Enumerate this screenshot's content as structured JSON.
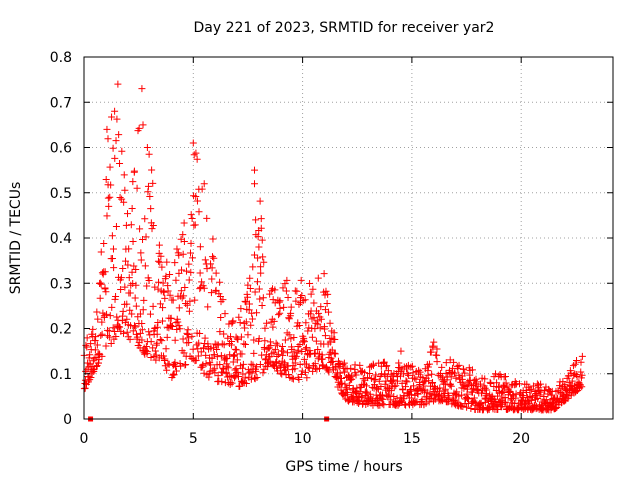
{
  "chart_data": {
    "type": "scatter",
    "title": "Day 221 of 2023, SRMTID for receiver yar2",
    "xlabel": "GPS time / hours",
    "ylabel": "SRMTID / TECUs",
    "xlim": [
      0,
      24.2
    ],
    "ylim": [
      0,
      0.8
    ],
    "x_ticks": [
      0,
      5,
      10,
      15,
      20
    ],
    "x_tick_labels": [
      "0",
      "5",
      "10",
      "15",
      "20"
    ],
    "y_ticks": [
      0,
      0.1,
      0.2,
      0.3,
      0.4,
      0.5,
      0.6,
      0.7,
      0.8
    ],
    "y_tick_labels": [
      "0",
      "0.1",
      "0.2",
      "0.3",
      "0.4",
      "0.5",
      "0.6",
      "0.7",
      "0.8"
    ],
    "grid": true,
    "series_color": "#ff0000",
    "marker": "plus",
    "square_markers": [
      {
        "x": 0.3,
        "y": 0
      },
      {
        "x": 11.1,
        "y": 0
      }
    ],
    "envelope": [
      {
        "x": 0.0,
        "low": 0.06,
        "high": 0.2
      },
      {
        "x": 0.5,
        "low": 0.11,
        "high": 0.2
      },
      {
        "x": 1.0,
        "low": 0.15,
        "high": 0.6
      },
      {
        "x": 1.5,
        "low": 0.18,
        "high": 0.74
      },
      {
        "x": 2.0,
        "low": 0.18,
        "high": 0.45
      },
      {
        "x": 2.5,
        "low": 0.16,
        "high": 0.73
      },
      {
        "x": 3.0,
        "low": 0.13,
        "high": 0.6
      },
      {
        "x": 3.5,
        "low": 0.13,
        "high": 0.38
      },
      {
        "x": 4.0,
        "low": 0.09,
        "high": 0.33
      },
      {
        "x": 4.5,
        "low": 0.12,
        "high": 0.44
      },
      {
        "x": 5.0,
        "low": 0.11,
        "high": 0.61
      },
      {
        "x": 5.5,
        "low": 0.1,
        "high": 0.52
      },
      {
        "x": 6.0,
        "low": 0.08,
        "high": 0.4
      },
      {
        "x": 6.5,
        "low": 0.08,
        "high": 0.22
      },
      {
        "x": 7.0,
        "low": 0.07,
        "high": 0.22
      },
      {
        "x": 7.5,
        "low": 0.08,
        "high": 0.3
      },
      {
        "x": 8.0,
        "low": 0.09,
        "high": 0.55
      },
      {
        "x": 8.5,
        "low": 0.12,
        "high": 0.3
      },
      {
        "x": 9.0,
        "low": 0.1,
        "high": 0.33
      },
      {
        "x": 9.5,
        "low": 0.09,
        "high": 0.3
      },
      {
        "x": 10.0,
        "low": 0.08,
        "high": 0.33
      },
      {
        "x": 10.5,
        "low": 0.1,
        "high": 0.3
      },
      {
        "x": 11.0,
        "low": 0.12,
        "high": 0.33
      },
      {
        "x": 11.5,
        "low": 0.08,
        "high": 0.18
      },
      {
        "x": 12.0,
        "low": 0.04,
        "high": 0.12
      },
      {
        "x": 13.0,
        "low": 0.03,
        "high": 0.12
      },
      {
        "x": 14.0,
        "low": 0.03,
        "high": 0.13
      },
      {
        "x": 15.0,
        "low": 0.03,
        "high": 0.12
      },
      {
        "x": 15.5,
        "low": 0.03,
        "high": 0.1
      },
      {
        "x": 16.0,
        "low": 0.04,
        "high": 0.17
      },
      {
        "x": 16.5,
        "low": 0.04,
        "high": 0.13
      },
      {
        "x": 17.0,
        "low": 0.03,
        "high": 0.14
      },
      {
        "x": 18.0,
        "low": 0.02,
        "high": 0.1
      },
      {
        "x": 19.0,
        "low": 0.02,
        "high": 0.1
      },
      {
        "x": 20.0,
        "low": 0.02,
        "high": 0.08
      },
      {
        "x": 21.0,
        "low": 0.02,
        "high": 0.08
      },
      {
        "x": 21.5,
        "low": 0.02,
        "high": 0.06
      },
      {
        "x": 22.0,
        "low": 0.04,
        "high": 0.1
      },
      {
        "x": 22.5,
        "low": 0.06,
        "high": 0.13
      },
      {
        "x": 22.8,
        "low": 0.07,
        "high": 0.14
      }
    ],
    "peaks": [
      {
        "x": 1.55,
        "y": 0.74
      },
      {
        "x": 1.05,
        "y": 0.64
      },
      {
        "x": 1.4,
        "y": 0.68
      },
      {
        "x": 2.65,
        "y": 0.73
      },
      {
        "x": 2.7,
        "y": 0.65
      },
      {
        "x": 2.9,
        "y": 0.6
      },
      {
        "x": 5.0,
        "y": 0.61
      },
      {
        "x": 5.5,
        "y": 0.52
      },
      {
        "x": 7.8,
        "y": 0.55
      },
      {
        "x": 7.8,
        "y": 0.52
      },
      {
        "x": 7.85,
        "y": 0.44
      },
      {
        "x": 8.0,
        "y": 0.38
      },
      {
        "x": 16.0,
        "y": 0.17
      },
      {
        "x": 14.5,
        "y": 0.15
      }
    ]
  }
}
